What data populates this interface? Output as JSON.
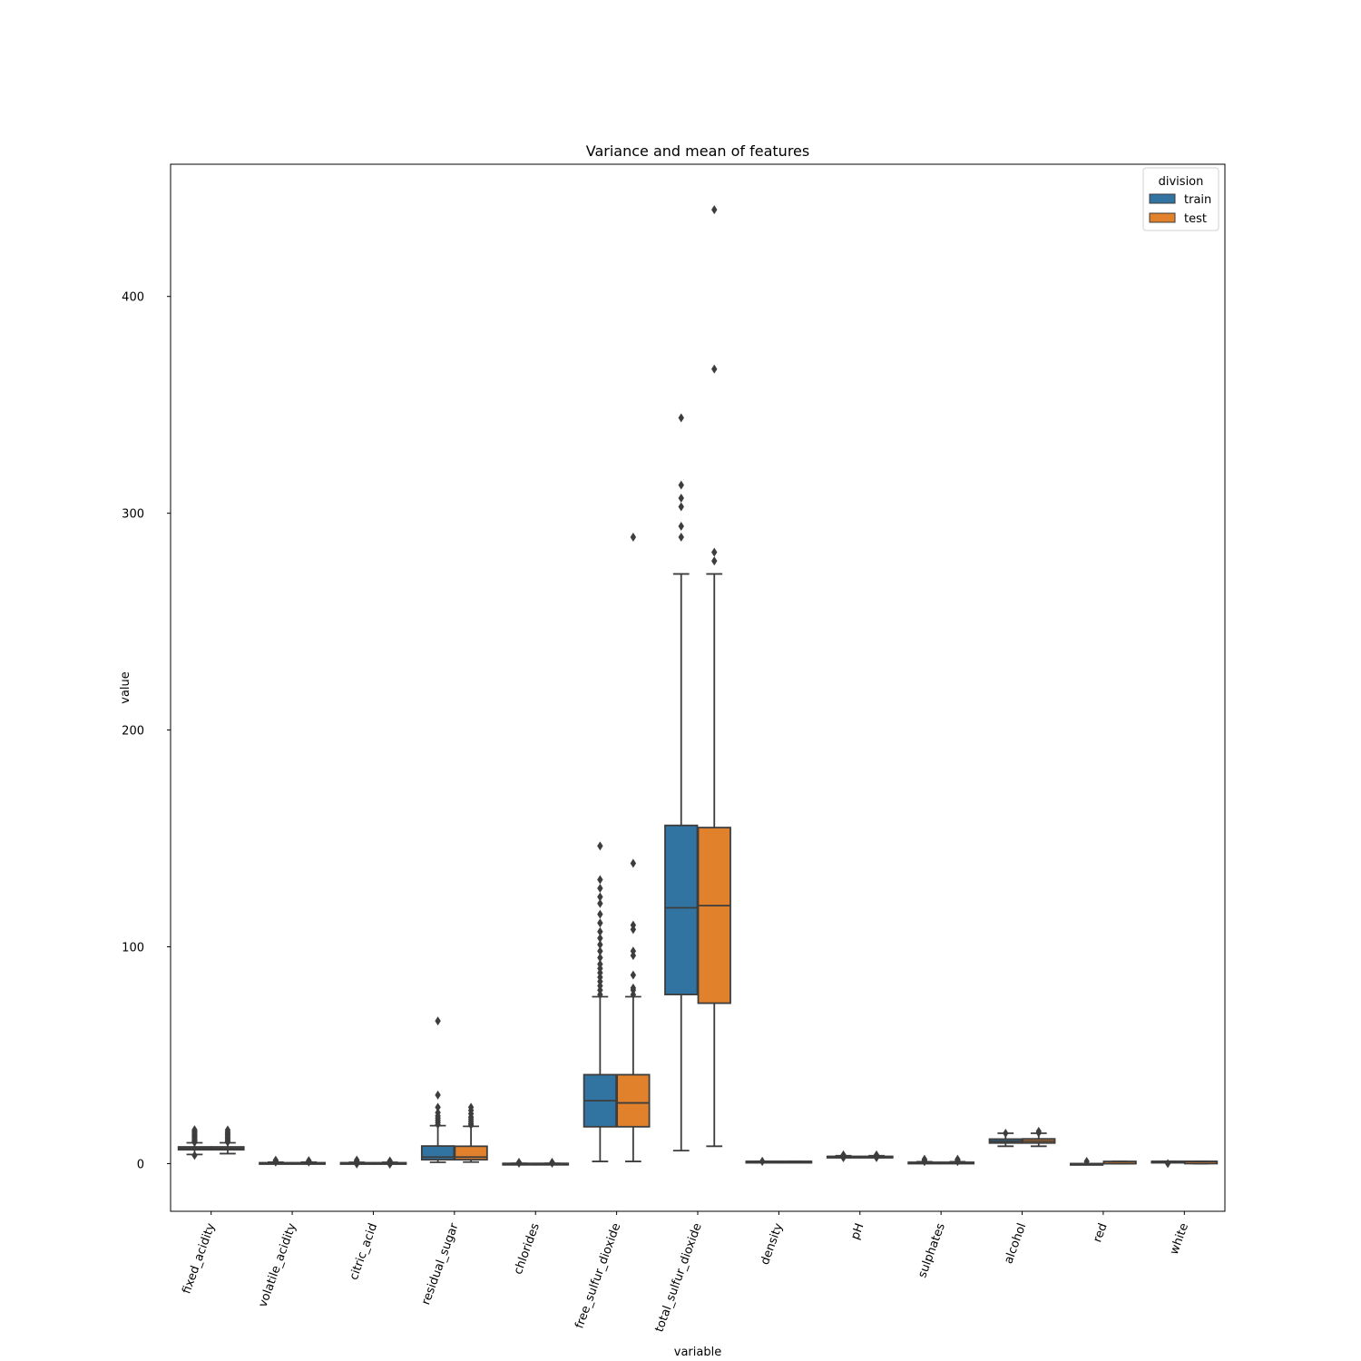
{
  "chart_data": {
    "type": "box",
    "title": "Variance and mean of features",
    "xlabel": "variable",
    "ylabel": "value",
    "ylim": [
      -22,
      461
    ],
    "yticks": [
      0,
      100,
      200,
      300,
      400
    ],
    "categories": [
      "fixed_acidity",
      "volatile_acidity",
      "citric_acid",
      "residual_sugar",
      "chlorides",
      "free_sulfur_dioxide",
      "total_sulfur_dioxide",
      "density",
      "pH",
      "sulphates",
      "alcohol",
      "red",
      "white"
    ],
    "legend": {
      "title": "division",
      "position": "top-right"
    },
    "series": [
      {
        "name": "train",
        "color": "#3274a1",
        "boxes": [
          {
            "q1": 6.4,
            "median": 7.0,
            "q3": 7.7,
            "wlo": 4.2,
            "whi": 9.6,
            "outliers": [
              3.8,
              9.8,
              10.2,
              10.6,
              11.0,
              11.5,
              12.0,
              12.5,
              13.0,
              13.5,
              14.0,
              14.5,
              15.0,
              15.6
            ]
          },
          {
            "q1": 0.23,
            "median": 0.29,
            "q3": 0.4,
            "wlo": 0.08,
            "whi": 0.65,
            "outliers": [
              0.7,
              0.85,
              1.0,
              1.2,
              1.6
            ]
          },
          {
            "q1": 0.25,
            "median": 0.31,
            "q3": 0.39,
            "wlo": 0.0,
            "whi": 0.6,
            "outliers": [
              -0.2,
              0.7,
              0.9,
              1.2,
              1.66
            ]
          },
          {
            "q1": 1.8,
            "median": 3.0,
            "q3": 8.1,
            "wlo": 0.6,
            "whi": 17.5,
            "outliers": [
              18.0,
              19.0,
              20.0,
              21.0,
              22.0,
              23.5,
              26.0,
              31.6,
              65.8
            ]
          },
          {
            "q1": 0.038,
            "median": 0.047,
            "q3": 0.065,
            "wlo": 0.009,
            "whi": 0.105,
            "outliers": [
              0.2,
              0.4,
              0.61
            ]
          },
          {
            "q1": 17.0,
            "median": 29.0,
            "q3": 41.0,
            "wlo": 1.0,
            "whi": 77.0,
            "outliers": [
              78,
              80,
              82,
              84,
              86,
              88,
              90,
              92,
              95,
              98,
              101,
              104,
              107,
              111,
              115,
              120,
              123,
              127,
              131,
              146.5
            ]
          },
          {
            "q1": 78.0,
            "median": 118.0,
            "q3": 156.0,
            "wlo": 6.0,
            "whi": 272.0,
            "outliers": [
              289,
              294,
              303,
              307,
              313,
              344
            ]
          },
          {
            "q1": 0.992,
            "median": 0.995,
            "q3": 0.997,
            "wlo": 0.987,
            "whi": 1.004,
            "outliers": [
              1.01,
              1.04
            ]
          },
          {
            "q1": 3.11,
            "median": 3.21,
            "q3": 3.32,
            "wlo": 2.8,
            "whi": 3.64,
            "outliers": [
              2.7,
              3.7,
              3.9,
              4.0
            ]
          },
          {
            "q1": 0.43,
            "median": 0.51,
            "q3": 0.6,
            "wlo": 0.22,
            "whi": 0.86,
            "outliers": [
              0.9,
              1.1,
              1.4,
              2.0
            ]
          },
          {
            "q1": 9.5,
            "median": 10.3,
            "q3": 11.3,
            "wlo": 8.0,
            "whi": 14.0,
            "outliers": [
              14.0
            ]
          },
          {
            "q1": 0,
            "median": 0,
            "q3": 0,
            "wlo": 0,
            "whi": 0,
            "outliers": [
              1
            ]
          },
          {
            "q1": 1,
            "median": 1,
            "q3": 1,
            "wlo": 1,
            "whi": 1,
            "outliers": [
              0
            ]
          }
        ]
      },
      {
        "name": "test",
        "color": "#e1812c",
        "boxes": [
          {
            "q1": 6.4,
            "median": 6.9,
            "q3": 7.7,
            "wlo": 4.6,
            "whi": 9.6,
            "outliers": [
              9.9,
              10.4,
              11.0,
              11.6,
              12.2,
              12.8,
              13.4,
              14.0,
              14.6,
              15.5
            ]
          },
          {
            "q1": 0.23,
            "median": 0.29,
            "q3": 0.4,
            "wlo": 0.08,
            "whi": 0.65,
            "outliers": [
              0.7,
              0.9,
              1.1,
              1.4
            ]
          },
          {
            "q1": 0.24,
            "median": 0.31,
            "q3": 0.39,
            "wlo": 0.0,
            "whi": 0.6,
            "outliers": [
              -0.3,
              0.7,
              0.9,
              1.23
            ]
          },
          {
            "q1": 1.8,
            "median": 3.0,
            "q3": 8.0,
            "wlo": 0.7,
            "whi": 17.2,
            "outliers": [
              17.8,
              18.5,
              19.5,
              20.5,
              21.5,
              23.0,
              24.5,
              26.0
            ]
          },
          {
            "q1": 0.038,
            "median": 0.047,
            "q3": 0.065,
            "wlo": 0.009,
            "whi": 0.105,
            "outliers": [
              0.2,
              0.4,
              0.6
            ]
          },
          {
            "q1": 17.0,
            "median": 28.0,
            "q3": 41.0,
            "wlo": 1.0,
            "whi": 77.0,
            "outliers": [
              78,
              80,
              81,
              87,
              96,
              98,
              108,
              110,
              138.5,
              289
            ]
          },
          {
            "q1": 74.0,
            "median": 119.0,
            "q3": 155.0,
            "wlo": 8.0,
            "whi": 272.0,
            "outliers": [
              278,
              282,
              366.5,
              440
            ]
          },
          {
            "q1": 0.992,
            "median": 0.995,
            "q3": 0.997,
            "wlo": 0.987,
            "whi": 1.003,
            "outliers": []
          },
          {
            "q1": 3.11,
            "median": 3.21,
            "q3": 3.32,
            "wlo": 2.8,
            "whi": 3.64,
            "outliers": [
              2.75,
              3.75,
              3.9,
              4.0
            ]
          },
          {
            "q1": 0.43,
            "median": 0.5,
            "q3": 0.6,
            "wlo": 0.22,
            "whi": 0.86,
            "outliers": [
              0.9,
              1.2,
              1.6,
              2.0
            ]
          },
          {
            "q1": 9.5,
            "median": 10.4,
            "q3": 11.4,
            "wlo": 8.0,
            "whi": 14.0,
            "outliers": [
              14.2,
              14.9
            ]
          },
          {
            "q1": 0,
            "median": 0,
            "q3": 1,
            "wlo": 0,
            "whi": 1,
            "outliers": []
          },
          {
            "q1": 0,
            "median": 1,
            "q3": 1,
            "wlo": 0,
            "whi": 1,
            "outliers": []
          }
        ]
      }
    ]
  }
}
